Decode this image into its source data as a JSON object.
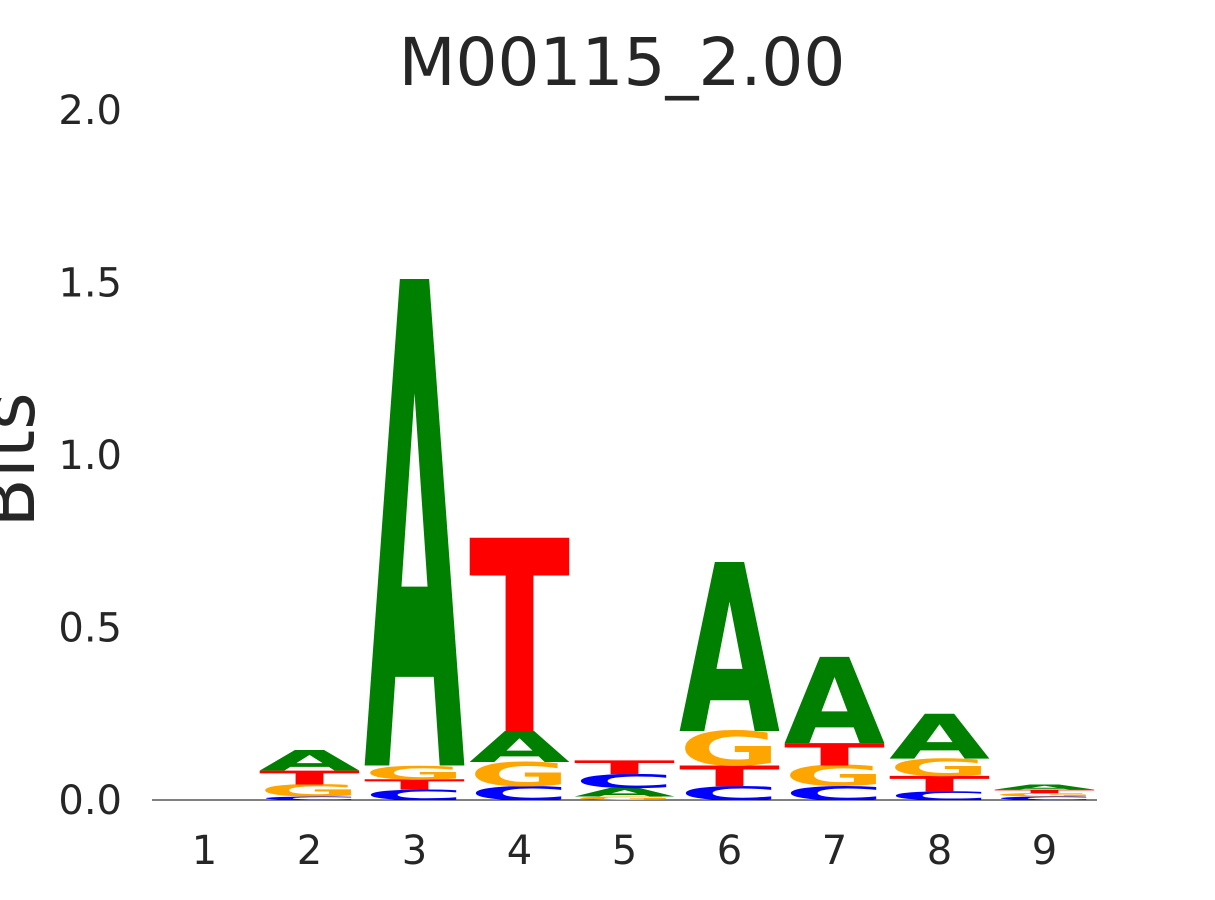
{
  "chart_data": {
    "type": "logo",
    "title": "M00115_2.00",
    "y_label": "Bits",
    "categories": [
      "1",
      "2",
      "3",
      "4",
      "5",
      "6",
      "7",
      "8",
      "9"
    ],
    "series": [
      {
        "name": "A",
        "color": "#008000",
        "values": [
          0,
          0.06,
          1.41,
          0.09,
          0.025,
          0.49,
          0.25,
          0.13,
          0.015
        ]
      },
      {
        "name": "C",
        "color": "#0000ff",
        "values": [
          0,
          0.01,
          0.03,
          0.04,
          0.04,
          0.04,
          0.04,
          0.025,
          0.01
        ]
      },
      {
        "name": "G",
        "color": "#ffa500",
        "values": [
          0,
          0.035,
          0.04,
          0.07,
          0.01,
          0.1,
          0.06,
          0.05,
          0.01
        ]
      },
      {
        "name": "T",
        "color": "#ff0000",
        "values": [
          0,
          0.04,
          0.03,
          0.56,
          0.04,
          0.06,
          0.065,
          0.045,
          0.01
        ]
      }
    ],
    "ylim": [
      0,
      2
    ],
    "yticks": [
      {
        "value": 0,
        "label": "0.0"
      },
      0.5,
      {
        "value": 1,
        "label": "1.0"
      },
      1.5,
      {
        "value": 2,
        "label": "2.0"
      }
    ]
  }
}
